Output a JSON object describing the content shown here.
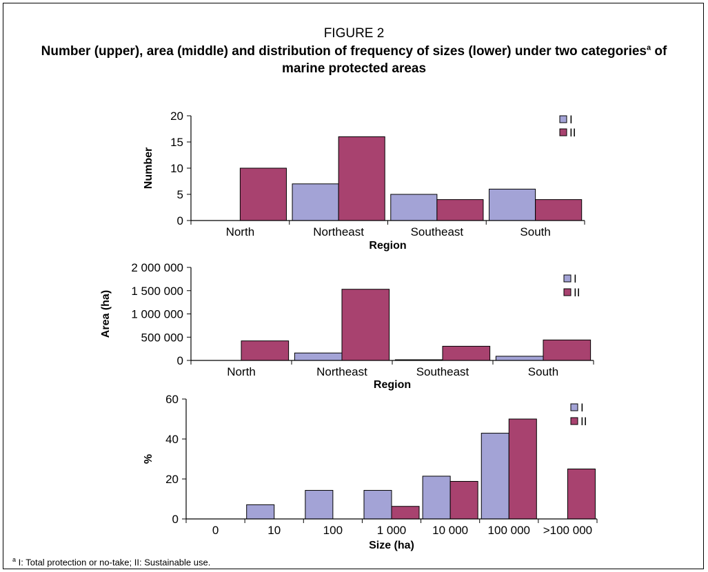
{
  "figure": {
    "label": "FIGURE 2",
    "title_main": "Number (upper), area (middle) and distribution of frequency of sizes (lower) under two categories",
    "title_sup": "a",
    "title_end": " of marine protected areas",
    "footnote_marker": "a",
    "footnote_text": " I: Total protection or no-take; II: Sustainable use."
  },
  "colors": {
    "series_I": "#a3a3d6",
    "series_II": "#a8426f",
    "axis": "#000000"
  },
  "chart_data": [
    {
      "type": "bar",
      "xlabel": "Region",
      "ylabel": "Number",
      "ylim": [
        0,
        20
      ],
      "yticks": [
        0,
        5,
        10,
        15,
        20
      ],
      "ytick_labels": [
        "0",
        "5",
        "10",
        "15",
        "20"
      ],
      "categories": [
        "North",
        "Northeast",
        "Southeast",
        "South"
      ],
      "series": [
        {
          "name": "I",
          "values": [
            0,
            7,
            5,
            6
          ]
        },
        {
          "name": "II",
          "values": [
            10,
            16,
            4,
            4
          ]
        }
      ],
      "legend": "top-right",
      "grid": false
    },
    {
      "type": "bar",
      "xlabel": "Region",
      "ylabel": "Area (ha)",
      "ylim": [
        0,
        2000000
      ],
      "yticks": [
        0,
        500000,
        1000000,
        1500000,
        2000000
      ],
      "ytick_labels": [
        "0",
        "500 000",
        "1 000 000",
        "1 500 000",
        "2 000 000"
      ],
      "categories": [
        "North",
        "Northeast",
        "Southeast",
        "South"
      ],
      "series": [
        {
          "name": "I",
          "values": [
            0,
            160000,
            15000,
            90000
          ]
        },
        {
          "name": "II",
          "values": [
            420000,
            1530000,
            305000,
            440000
          ]
        }
      ],
      "legend": "top-right",
      "grid": false
    },
    {
      "type": "bar",
      "xlabel": "Size (ha)",
      "ylabel": "%",
      "ylim": [
        0,
        60
      ],
      "yticks": [
        0,
        20,
        40,
        60
      ],
      "ytick_labels": [
        "0",
        "20",
        "40",
        "60"
      ],
      "categories": [
        "0",
        "10",
        "100",
        "1 000",
        "10 000",
        "100 000",
        ">100 000"
      ],
      "series": [
        {
          "name": "I",
          "values": [
            0,
            7.1,
            14.3,
            14.3,
            21.4,
            42.9,
            0
          ]
        },
        {
          "name": "II",
          "values": [
            0,
            0,
            0,
            6.3,
            18.8,
            50,
            25
          ]
        }
      ],
      "legend": "top-right",
      "grid": false
    }
  ]
}
